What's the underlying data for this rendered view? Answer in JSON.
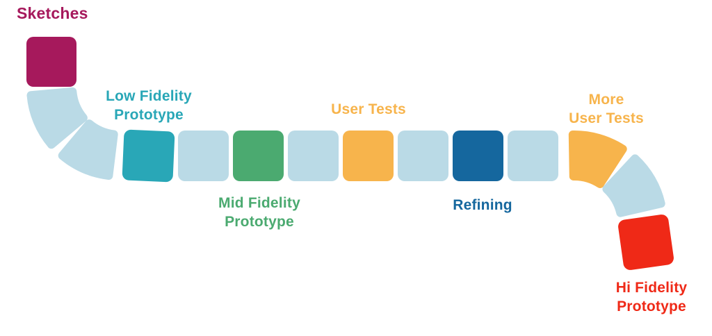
{
  "colors": {
    "magenta": "#A6195C",
    "track_blue": "#BADAE6",
    "teal": "#29A7B7",
    "green": "#4BAA70",
    "orange": "#F7B44C",
    "dark_blue": "#15679E",
    "red": "#EF2917",
    "background": "#FFFFFF"
  },
  "labels": {
    "sketches": {
      "text": "Sketches",
      "color": "#A6195C"
    },
    "low_fidelity": {
      "text": "Low Fidelity\nPrototype",
      "color": "#29A7B7"
    },
    "mid_fidelity": {
      "text": "Mid Fidelity\nPrototype",
      "color": "#4BAA70"
    },
    "user_tests": {
      "text": "User Tests",
      "color": "#F7B44C"
    },
    "refining": {
      "text": "Refining",
      "color": "#15679E"
    },
    "more_user_tests": {
      "text": "More\nUser Tests",
      "color": "#F7B44C"
    },
    "hi_fidelity": {
      "text": "Hi Fidelity\nPrototype",
      "color": "#EF2917"
    }
  },
  "segments": [
    {
      "name": "sketches-tile",
      "shape": "square",
      "color_key": "magenta",
      "stage": "Sketches"
    },
    {
      "name": "track-curve-tile",
      "shape": "wedge",
      "color_key": "track_blue",
      "stage": ""
    },
    {
      "name": "track-curve-tile",
      "shape": "wedge",
      "color_key": "track_blue",
      "stage": ""
    },
    {
      "name": "low-fidelity-prototype-tile",
      "shape": "square",
      "color_key": "teal",
      "stage": "Low Fidelity Prototype"
    },
    {
      "name": "track-tile",
      "shape": "square",
      "color_key": "track_blue",
      "stage": ""
    },
    {
      "name": "mid-fidelity-prototype-tile",
      "shape": "square",
      "color_key": "green",
      "stage": "Mid Fidelity Prototype"
    },
    {
      "name": "track-tile",
      "shape": "square",
      "color_key": "track_blue",
      "stage": ""
    },
    {
      "name": "user-tests-tile",
      "shape": "square",
      "color_key": "orange",
      "stage": "User Tests"
    },
    {
      "name": "track-tile",
      "shape": "square",
      "color_key": "track_blue",
      "stage": ""
    },
    {
      "name": "refining-tile",
      "shape": "square",
      "color_key": "dark_blue",
      "stage": "Refining"
    },
    {
      "name": "track-tile",
      "shape": "square",
      "color_key": "track_blue",
      "stage": ""
    },
    {
      "name": "more-user-tests-tile",
      "shape": "wedge",
      "color_key": "orange",
      "stage": "More User Tests"
    },
    {
      "name": "track-curve-tile",
      "shape": "wedge",
      "color_key": "track_blue",
      "stage": ""
    },
    {
      "name": "hi-fidelity-prototype-tile",
      "shape": "square",
      "color_key": "red",
      "stage": "Hi Fidelity Prototype"
    }
  ]
}
